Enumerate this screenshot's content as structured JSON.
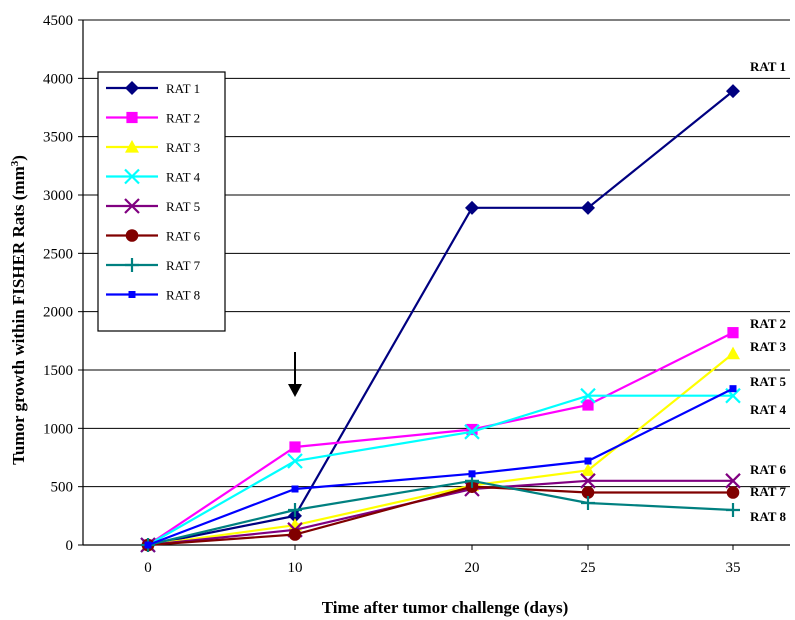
{
  "chart_data": {
    "type": "line",
    "xlabel": "Time after tumor challenge (days)",
    "ylabel": "Tumor growth within FISHER Rats (mm",
    "ylabel_sup": "3",
    "ylabel_close": ")",
    "categories": [
      "0",
      "10",
      "20",
      "25",
      "35"
    ],
    "ylim": [
      0,
      4500
    ],
    "yticks": [
      0,
      500,
      1000,
      1500,
      2000,
      2500,
      3000,
      3500,
      4000,
      4500
    ],
    "grid": "horizontal",
    "legend_position": "top-left",
    "arrow_annotation_at": "10",
    "series": [
      {
        "name": "RAT 1",
        "end_label": "RAT 1",
        "color": "#000080",
        "marker": "diamond",
        "values": [
          0,
          250,
          2890,
          2890,
          3890
        ]
      },
      {
        "name": "RAT 2",
        "end_label": "RAT 2",
        "color": "#ff00ff",
        "marker": "square",
        "values": [
          0,
          840,
          990,
          1200,
          1820
        ]
      },
      {
        "name": "RAT 3",
        "end_label": "RAT 3",
        "color": "#ffff00",
        "marker": "triangle",
        "values": [
          0,
          170,
          510,
          640,
          1640
        ]
      },
      {
        "name": "RAT 4",
        "end_label": "RAT 4",
        "color": "#00ffff",
        "marker": "x",
        "values": [
          0,
          720,
          970,
          1280,
          1280
        ]
      },
      {
        "name": "RAT 5",
        "end_label": "RAT 5",
        "color": "#800080",
        "marker": "x",
        "values": [
          0,
          130,
          480,
          550,
          550
        ]
      },
      {
        "name": "RAT 6",
        "end_label": "RAT 6",
        "color": "#800000",
        "marker": "circle",
        "values": [
          0,
          90,
          500,
          450,
          450
        ]
      },
      {
        "name": "RAT 7",
        "end_label": "RAT 7",
        "color": "#008080",
        "marker": "plus",
        "values": [
          0,
          300,
          550,
          360,
          300
        ]
      },
      {
        "name": "RAT 8",
        "end_label": "RAT 8",
        "color": "#0000ff",
        "marker": "smallsquare",
        "values": [
          0,
          480,
          610,
          720,
          1340
        ]
      }
    ]
  }
}
